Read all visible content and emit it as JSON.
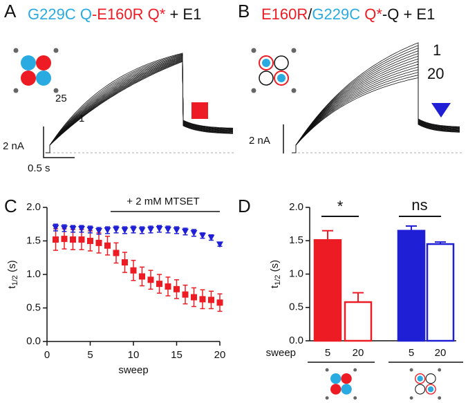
{
  "panel_labels": [
    "A",
    "B",
    "C",
    "D"
  ],
  "trace_a": {
    "title": [
      {
        "text": "G229C Q",
        "color": "#29abe2"
      },
      {
        "text": "-E160R Q*",
        "color": "#ed1c24"
      },
      {
        "text": " + E1",
        "color": "#111111"
      }
    ],
    "sweep_labels": [
      "25",
      "1"
    ],
    "scale_current": "2 nA",
    "scale_time": "0.5 s"
  },
  "trace_b": {
    "title": [
      {
        "text": "E160R",
        "color": "#ed1c24"
      },
      {
        "text": "/",
        "color": "#111111"
      },
      {
        "text": "G229C ",
        "color": "#29abe2"
      },
      {
        "text": "Q*",
        "color": "#ed1c24"
      },
      {
        "text": "-Q + E1",
        "color": "#111111"
      }
    ],
    "sweep_labels": [
      "1",
      "20"
    ],
    "scale_current": "2 nA"
  },
  "chart_data": [
    {
      "type": "scatter",
      "annotation": "+ 2 mM MTSET",
      "xlabel": "sweep",
      "ylabel": {
        "base": "t",
        "sub": "1/2",
        "unit": " (s)"
      },
      "xlim": [
        0,
        20
      ],
      "xticks": [
        0,
        5,
        10,
        15,
        20
      ],
      "ylim": [
        0,
        2
      ],
      "yticks": [
        {
          "value": 0,
          "label": "0.0"
        },
        {
          "value": 0.5,
          "label": "0.5"
        },
        {
          "value": 1,
          "label": "1.0"
        },
        {
          "value": 1.5,
          "label": "1.5"
        },
        {
          "value": 2,
          "label": "2.0"
        }
      ],
      "x": [
        1,
        2,
        3,
        4,
        5,
        6,
        7,
        8,
        9,
        10,
        11,
        12,
        13,
        14,
        15,
        16,
        17,
        18,
        19,
        20
      ],
      "series": [
        {
          "color": "#ed1c24",
          "marker": "square",
          "values": [
            1.52,
            1.53,
            1.52,
            1.52,
            1.5,
            1.47,
            1.43,
            1.32,
            1.18,
            1.06,
            0.97,
            0.92,
            0.86,
            0.82,
            0.78,
            0.7,
            0.66,
            0.63,
            0.62,
            0.58
          ],
          "errors": [
            0.16,
            0.15,
            0.15,
            0.15,
            0.15,
            0.15,
            0.14,
            0.15,
            0.15,
            0.15,
            0.14,
            0.14,
            0.14,
            0.14,
            0.14,
            0.14,
            0.14,
            0.14,
            0.13,
            0.13
          ]
        },
        {
          "color": "#1f1fd6",
          "marker": "triangle",
          "values": [
            1.7,
            1.69,
            1.68,
            1.68,
            1.67,
            1.65,
            1.66,
            1.67,
            1.66,
            1.67,
            1.66,
            1.67,
            1.68,
            1.67,
            1.66,
            1.64,
            1.62,
            1.58,
            1.55,
            1.45
          ],
          "errors": [
            0.05,
            0.05,
            0.05,
            0.05,
            0.05,
            0.05,
            0.05,
            0.05,
            0.05,
            0.05,
            0.05,
            0.05,
            0.05,
            0.05,
            0.05,
            0.05,
            0.05,
            0.04,
            0.04,
            0.03
          ]
        }
      ]
    },
    {
      "type": "bar",
      "xlabel": "sweep",
      "ylabel": {
        "base": "t",
        "sub": "1/2",
        "unit": " (s)"
      },
      "ylim": [
        0,
        2
      ],
      "yticks": [
        {
          "value": 0,
          "label": "0.0"
        },
        {
          "value": 0.5,
          "label": "0.5"
        },
        {
          "value": 1,
          "label": "1.0"
        },
        {
          "value": 1.5,
          "label": "1.5"
        },
        {
          "value": 2,
          "label": "2.0"
        }
      ],
      "categories": [
        "5",
        "20",
        "5",
        "20"
      ],
      "values": [
        1.51,
        0.58,
        1.65,
        1.45
      ],
      "errors": [
        0.14,
        0.14,
        0.07,
        0.03
      ],
      "colors": [
        "#ed1c24",
        "#ffffff",
        "#1f1fd6",
        "#ffffff"
      ],
      "edge_colors": [
        "#ed1c24",
        "#ed1c24",
        "#1f1fd6",
        "#1f1fd6"
      ],
      "significance": [
        "*",
        "ns"
      ]
    }
  ]
}
